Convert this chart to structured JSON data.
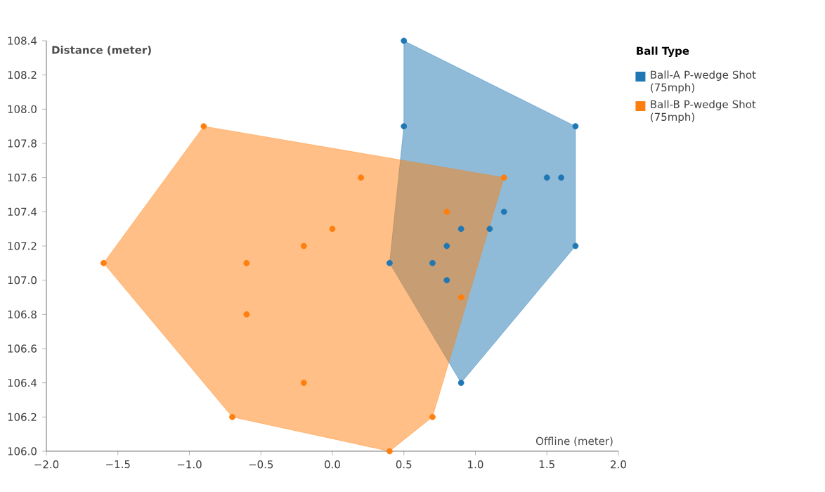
{
  "chart_data": {
    "type": "scatter",
    "xlabel": "Offline (meter)",
    "ylabel": "Distance (meter)",
    "legend_title": "Ball Type",
    "legend": "top right",
    "grid": false,
    "xlim": [
      -2.0,
      2.0
    ],
    "ylim": [
      106.0,
      108.4
    ],
    "xticks": [
      {
        "value": -2.0,
        "label": "−2.0"
      },
      {
        "value": -1.5,
        "label": "−1.5"
      },
      {
        "value": -1.0,
        "label": "−1.0"
      },
      {
        "value": -0.5,
        "label": "−0.5"
      },
      {
        "value": 0.0,
        "label": "0.0"
      },
      {
        "value": 0.5,
        "label": "0.5"
      },
      {
        "value": 1.0,
        "label": "1.0"
      },
      {
        "value": 1.5,
        "label": "1.5"
      },
      {
        "value": 2.0,
        "label": "2.0"
      }
    ],
    "yticks": [
      {
        "value": 106.0,
        "label": "106.0"
      },
      {
        "value": 106.2,
        "label": "106.2"
      },
      {
        "value": 106.4,
        "label": "106.4"
      },
      {
        "value": 106.6,
        "label": "106.6"
      },
      {
        "value": 106.8,
        "label": "106.8"
      },
      {
        "value": 107.0,
        "label": "107.0"
      },
      {
        "value": 107.2,
        "label": "107.2"
      },
      {
        "value": 107.4,
        "label": "107.4"
      },
      {
        "value": 107.6,
        "label": "107.6"
      },
      {
        "value": 107.8,
        "label": "107.8"
      },
      {
        "value": 108.0,
        "label": "108.0"
      },
      {
        "value": 108.2,
        "label": "108.2"
      },
      {
        "value": 108.4,
        "label": "108.4"
      }
    ],
    "series": [
      {
        "type": "area",
        "marker": "none",
        "color": "#1f77b4",
        "x": [
          0.5,
          1.7,
          1.7,
          0.9,
          0.4,
          0.5
        ],
        "values": [
          108.4,
          107.9,
          107.2,
          106.4,
          107.1,
          107.9
        ]
      },
      {
        "name": "Ball-A P-wedge Shot (75mph)",
        "marker": "circle",
        "color": "#1f77b4",
        "x": [
          0.5,
          0.5,
          1.7,
          1.5,
          1.6,
          1.2,
          1.7,
          0.9,
          0.4,
          0.7,
          0.8,
          0.9,
          1.1,
          0.8
        ],
        "values": [
          108.4,
          107.9,
          107.9,
          107.6,
          107.6,
          107.4,
          107.2,
          106.4,
          107.1,
          107.1,
          107.2,
          107.3,
          107.3,
          107.0
        ]
      },
      {
        "type": "area",
        "marker": "none",
        "color": "#ff7f0e",
        "x": [
          -0.9,
          1.2,
          0.7,
          0.4,
          -0.7,
          -1.6
        ],
        "values": [
          107.9,
          107.6,
          106.2,
          106.0,
          106.2,
          107.1
        ]
      },
      {
        "name": "Ball-B P-wedge Shot (75mph)",
        "marker": "circle",
        "color": "#ff7f0e",
        "x": [
          -0.9,
          0.2,
          1.2,
          0.8,
          0.0,
          -0.2,
          -1.6,
          -0.6,
          -0.6,
          0.9,
          -0.2,
          -0.7,
          0.7,
          0.4
        ],
        "values": [
          107.9,
          107.6,
          107.6,
          107.4,
          107.3,
          107.2,
          107.1,
          107.1,
          106.8,
          106.9,
          106.4,
          106.2,
          106.2,
          106.0
        ]
      }
    ]
  }
}
